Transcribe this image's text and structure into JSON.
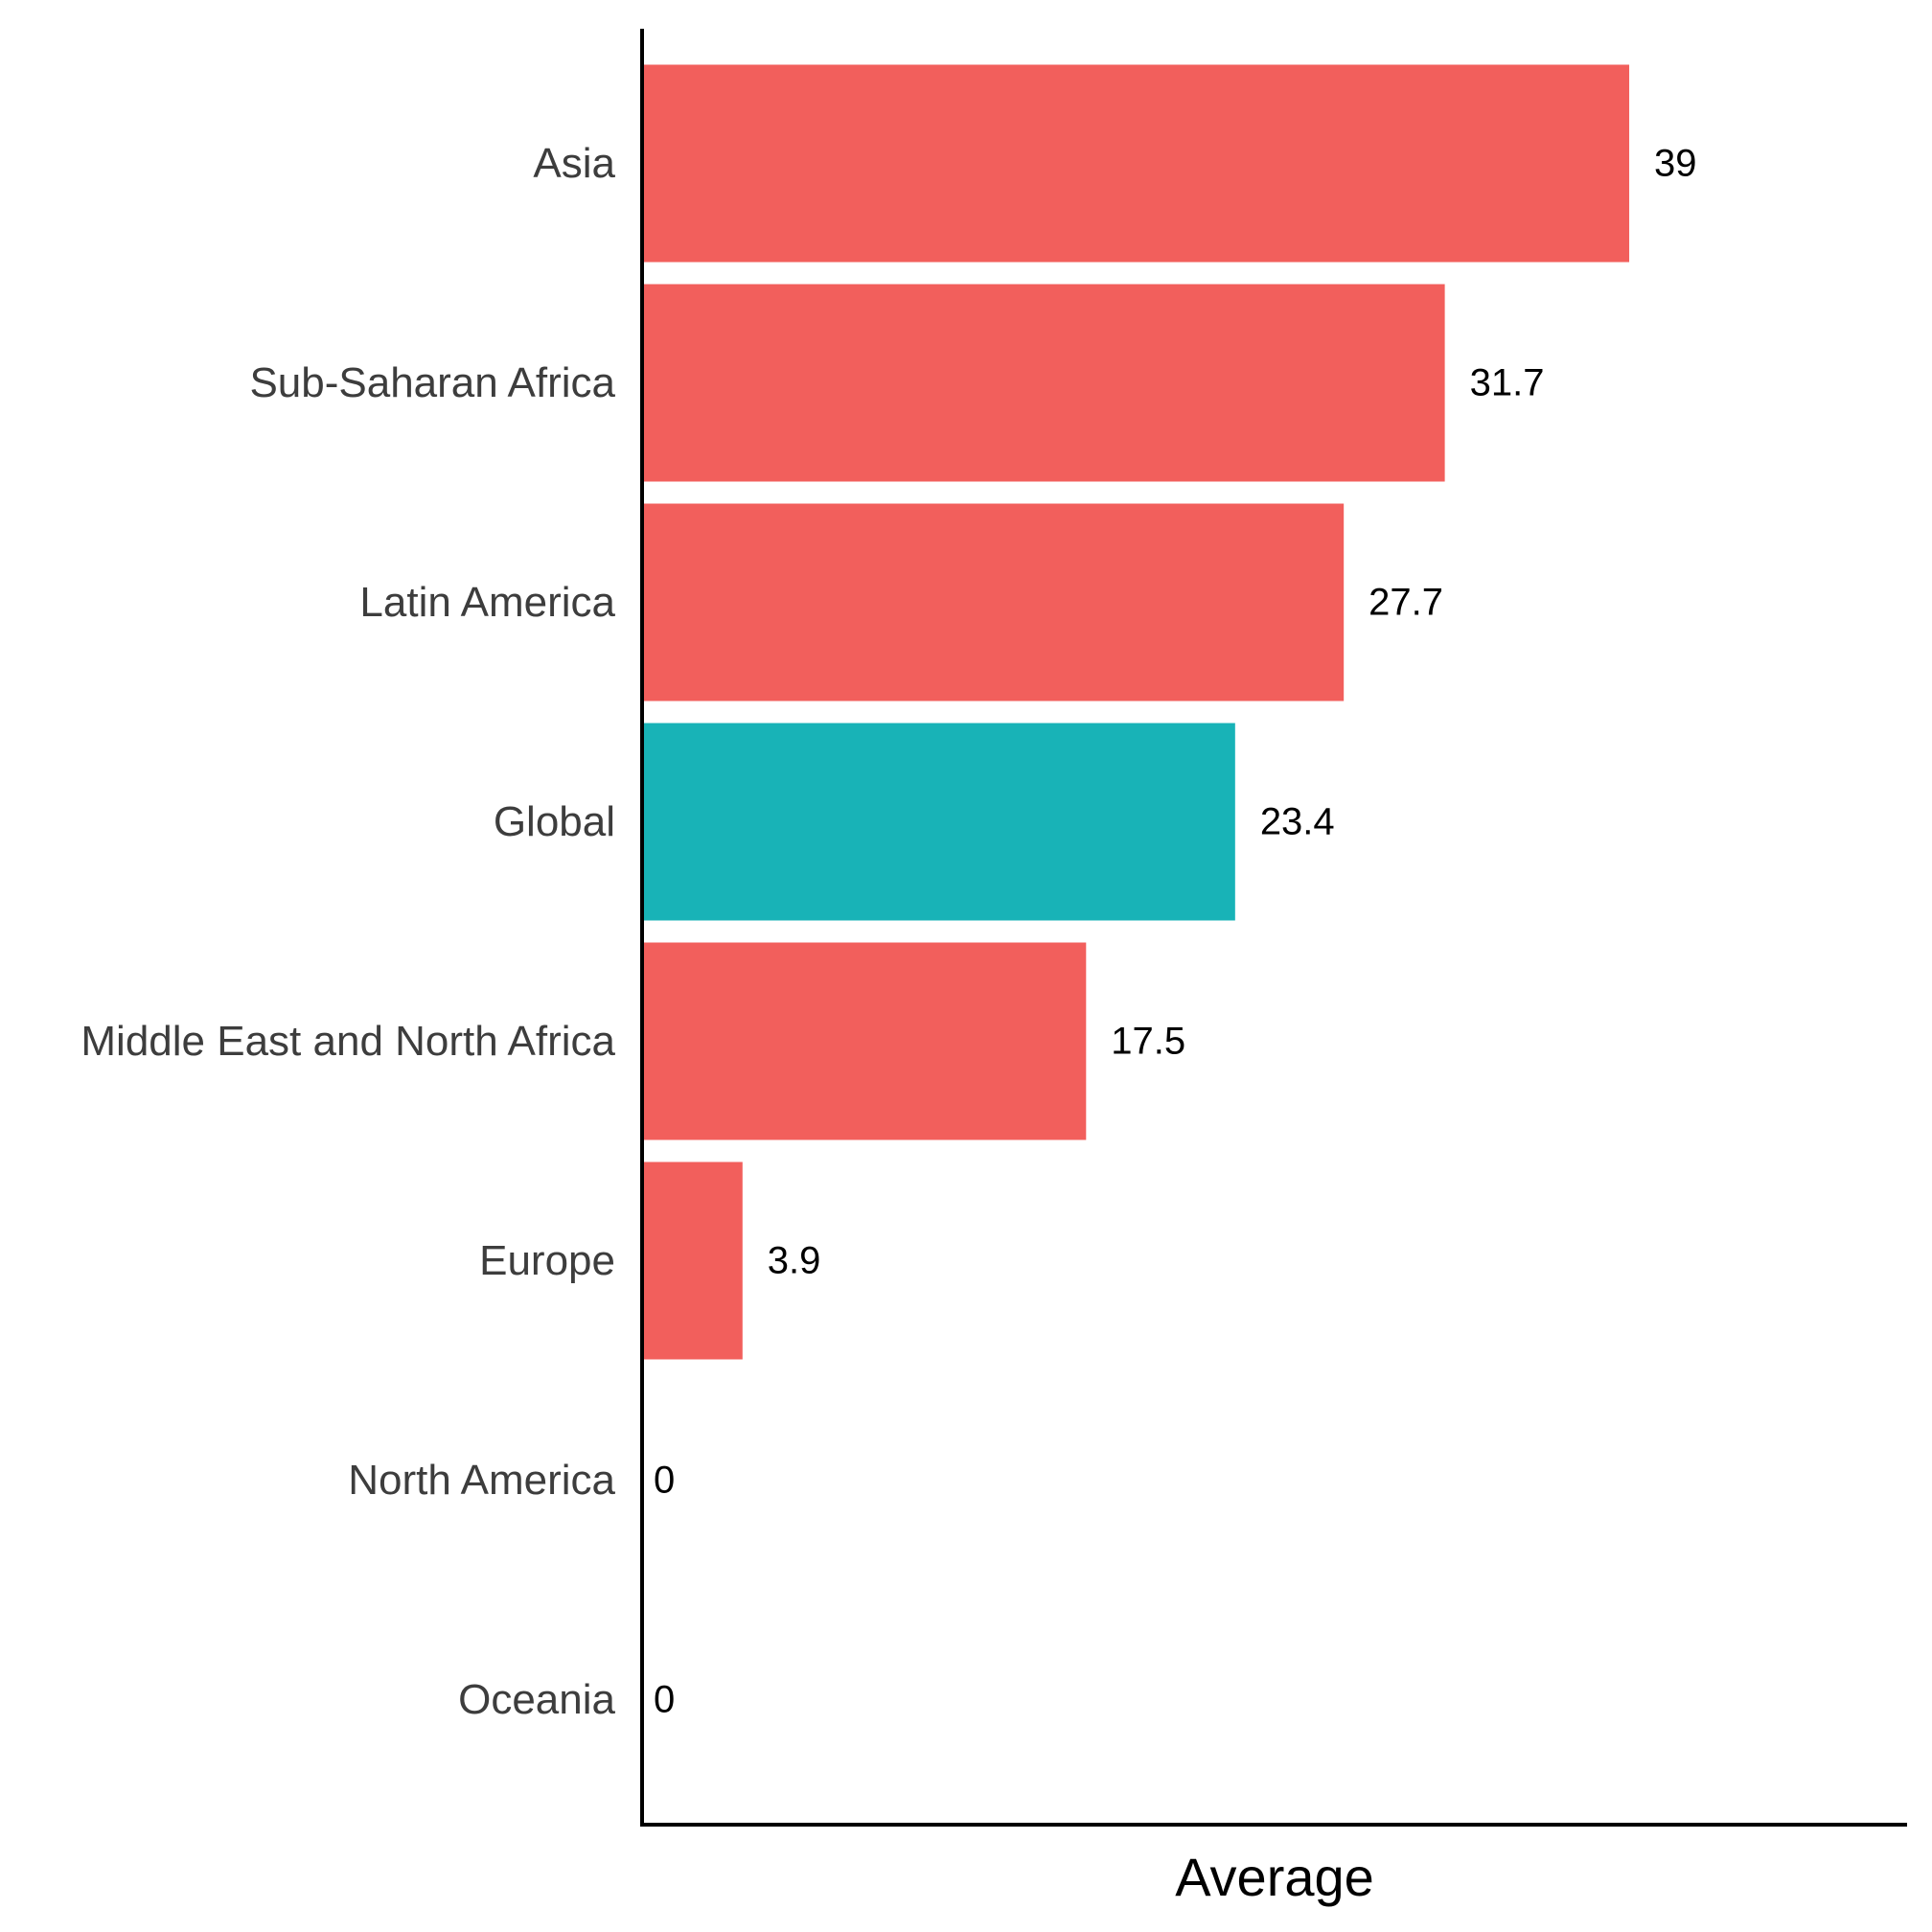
{
  "chart_data": {
    "type": "bar",
    "orientation": "horizontal",
    "categories": [
      "Asia",
      "Sub-Saharan Africa",
      "Latin America",
      "Global",
      "Middle East and North Africa",
      "Europe",
      "North America",
      "Oceania"
    ],
    "values": [
      39,
      31.7,
      27.7,
      23.4,
      17.5,
      3.9,
      0,
      0
    ],
    "value_labels": [
      "39",
      "31.7",
      "27.7",
      "23.4",
      "17.5",
      "3.9",
      "0",
      "0"
    ],
    "highlight_category": "Global",
    "xlabel": "Average",
    "ylabel": "",
    "xlim": [
      0,
      50
    ],
    "grid": false,
    "colors": {
      "default": "#f25f5c",
      "highlight": "#18b3b7"
    }
  }
}
